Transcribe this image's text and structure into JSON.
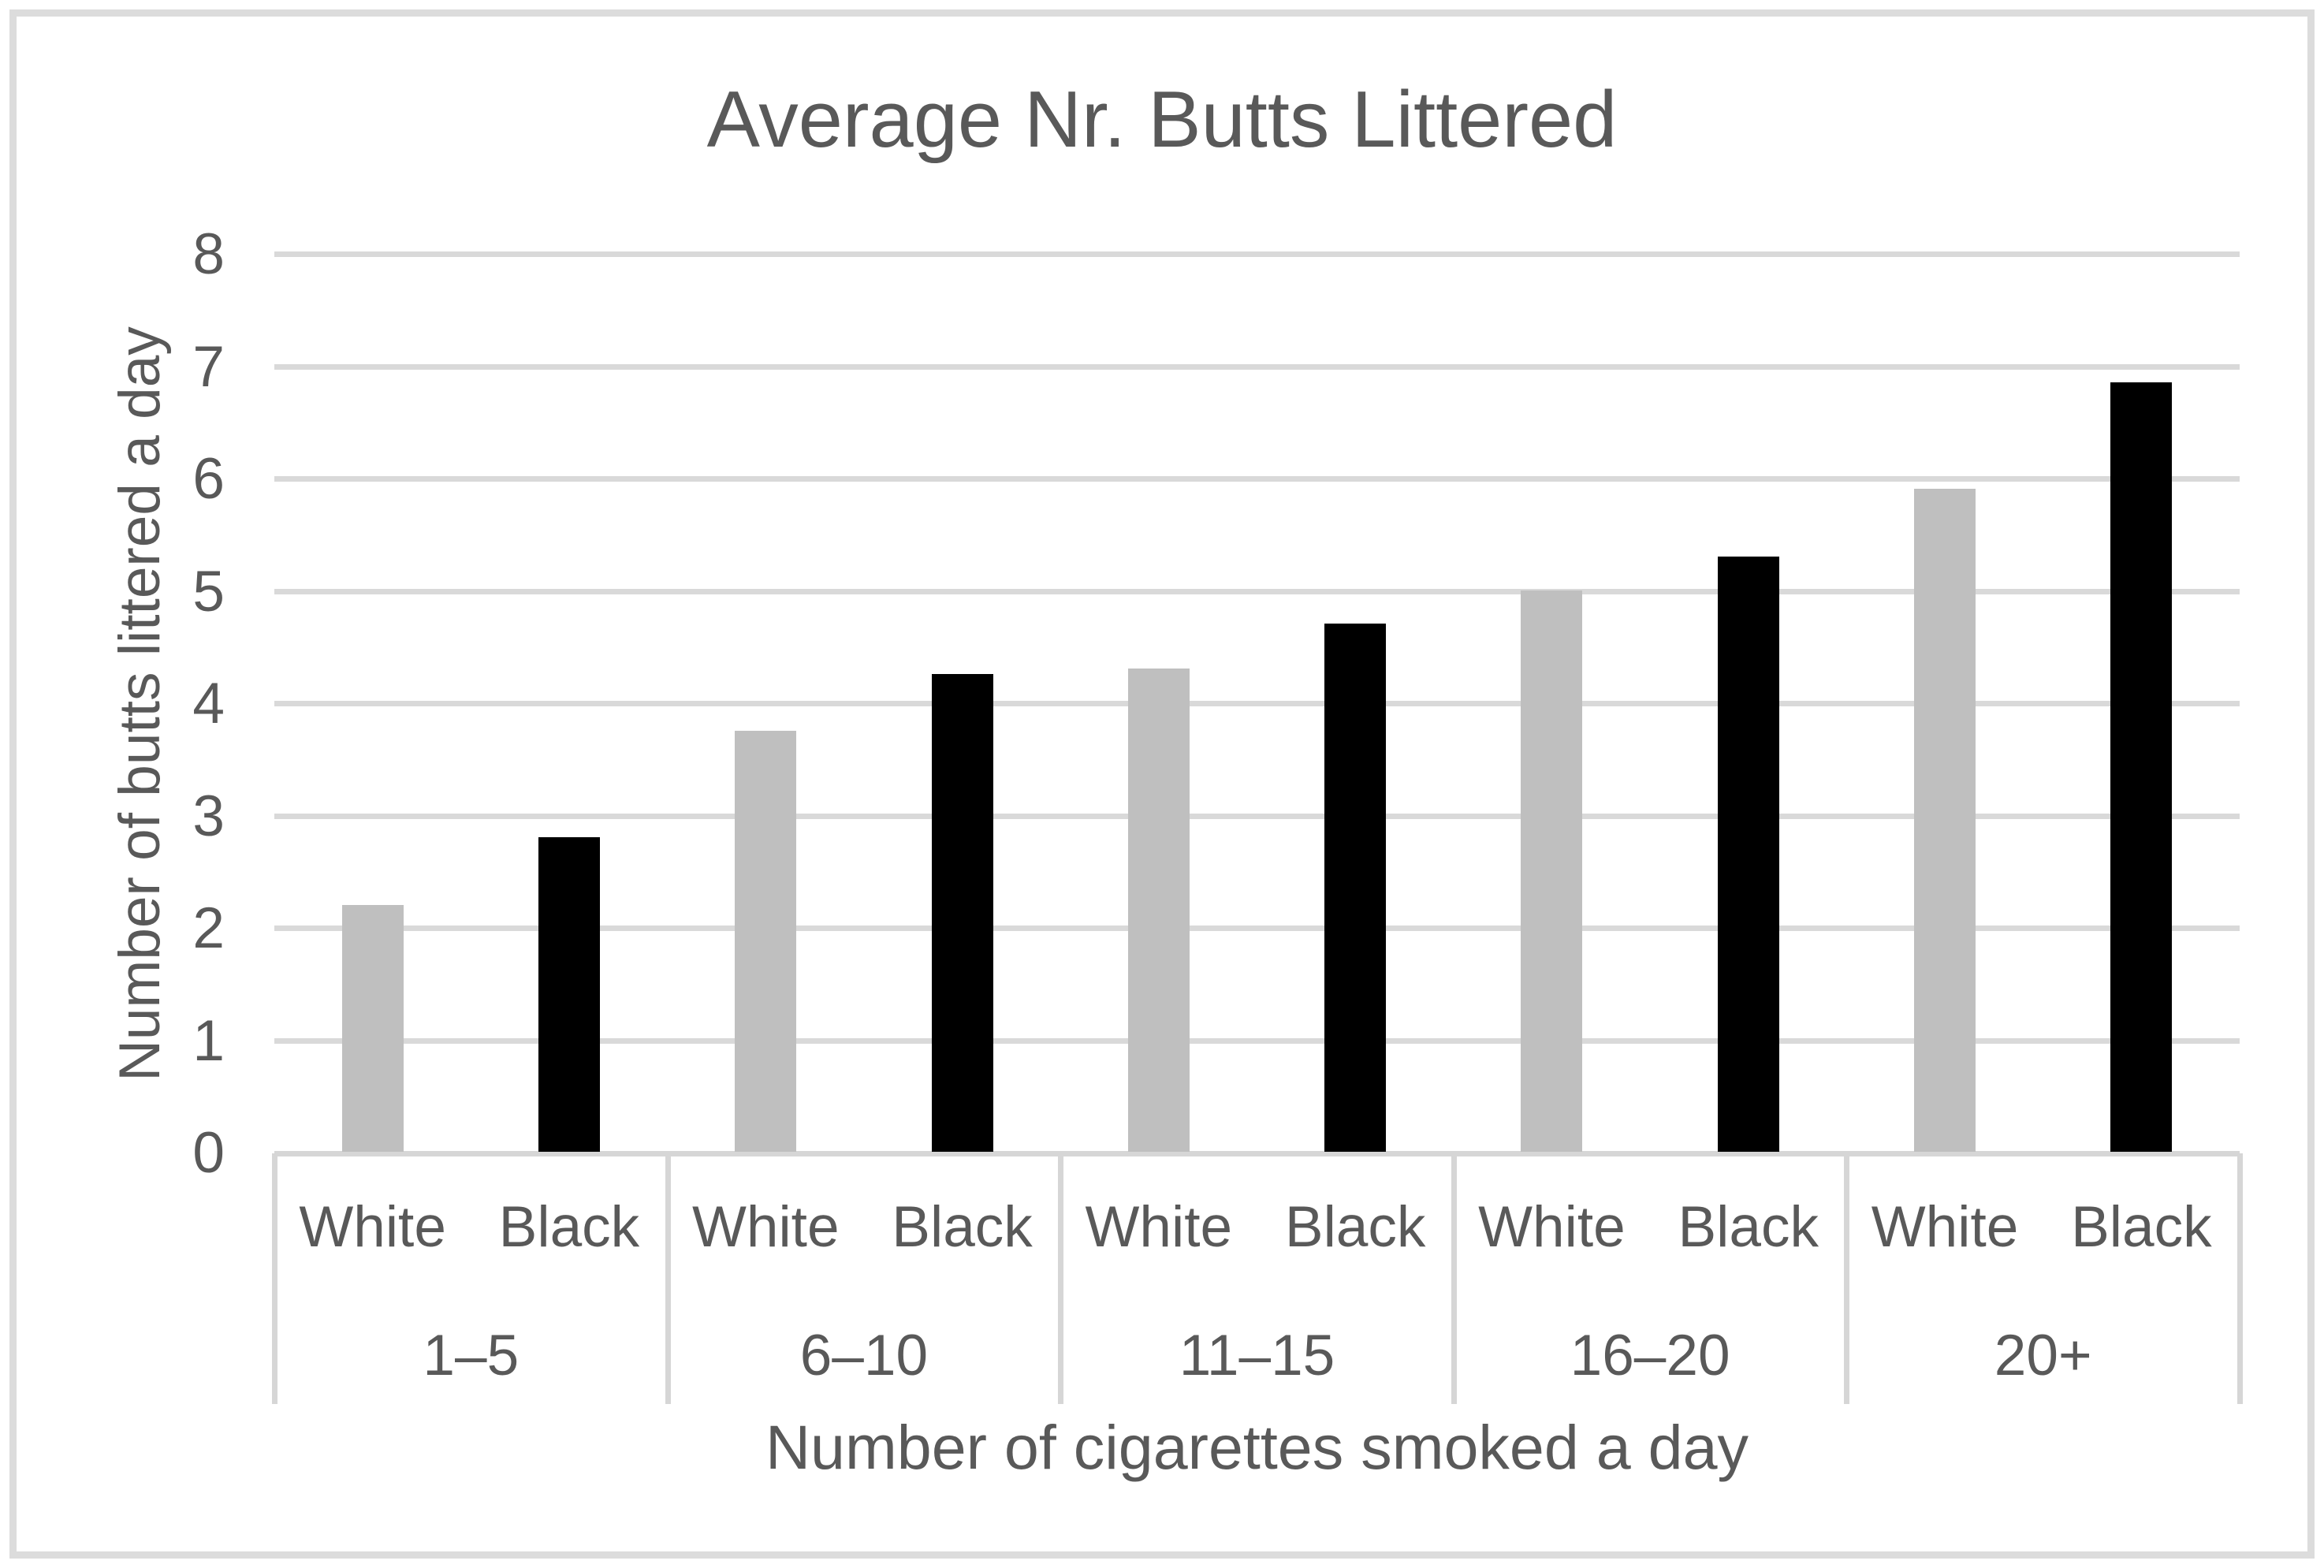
{
  "chart_data": {
    "type": "bar",
    "title": "Average Nr. Butts Littered",
    "xlabel": "Number of cigarettes smoked a day",
    "ylabel": "Number of butts littered a day",
    "categories": [
      "1–5",
      "6–10",
      "11–15",
      "16–20",
      "20+"
    ],
    "series": [
      {
        "name": "White",
        "color": "#bfbfbf",
        "values": [
          2.2,
          3.75,
          4.3,
          5.0,
          5.9
        ]
      },
      {
        "name": "Black",
        "color": "#000000",
        "values": [
          2.8,
          4.25,
          4.7,
          5.3,
          6.85
        ]
      }
    ],
    "ylim": [
      0,
      8
    ],
    "ytick_step": 1,
    "yticks": [
      0,
      1,
      2,
      3,
      4,
      5,
      6,
      7,
      8
    ],
    "grid": "horizontal",
    "legend": "none — series names repeated as sub-labels under each category group"
  },
  "colors": {
    "text": "#595959",
    "gridline": "#d9d9d9",
    "axis_line": "#d6d6d6",
    "frame_border": "#dcdcdc",
    "background": "#ffffff"
  }
}
